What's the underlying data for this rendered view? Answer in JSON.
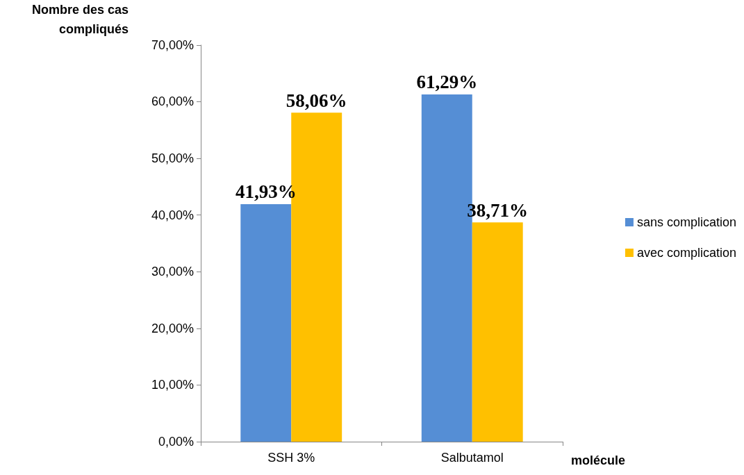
{
  "chart_data": {
    "type": "bar",
    "ylabel": "Nombre des cas\ncompliqués",
    "xlabel": "molécule",
    "categories": [
      "SSH 3%",
      "Salbutamol"
    ],
    "series": [
      {
        "name": "sans complication",
        "color": "#558ed5",
        "values": [
          41.93,
          61.29
        ],
        "value_labels": [
          "41,93%",
          "61,29%"
        ]
      },
      {
        "name": "avec complication",
        "color": "#ffc000",
        "values": [
          58.06,
          38.71
        ],
        "value_labels": [
          "58,06%",
          "38,71%"
        ]
      }
    ],
    "ylim": [
      0,
      70
    ],
    "yticks": [
      {
        "value": 0,
        "label": "0,00%"
      },
      {
        "value": 10,
        "label": "10,00%"
      },
      {
        "value": 20,
        "label": "20,00%"
      },
      {
        "value": 30,
        "label": "30,00%"
      },
      {
        "value": 40,
        "label": "40,00%"
      },
      {
        "value": 50,
        "label": "50,00%"
      },
      {
        "value": 60,
        "label": "60,00%"
      },
      {
        "value": 70,
        "label": "70,00%"
      }
    ],
    "grid": false,
    "legend": "right"
  }
}
